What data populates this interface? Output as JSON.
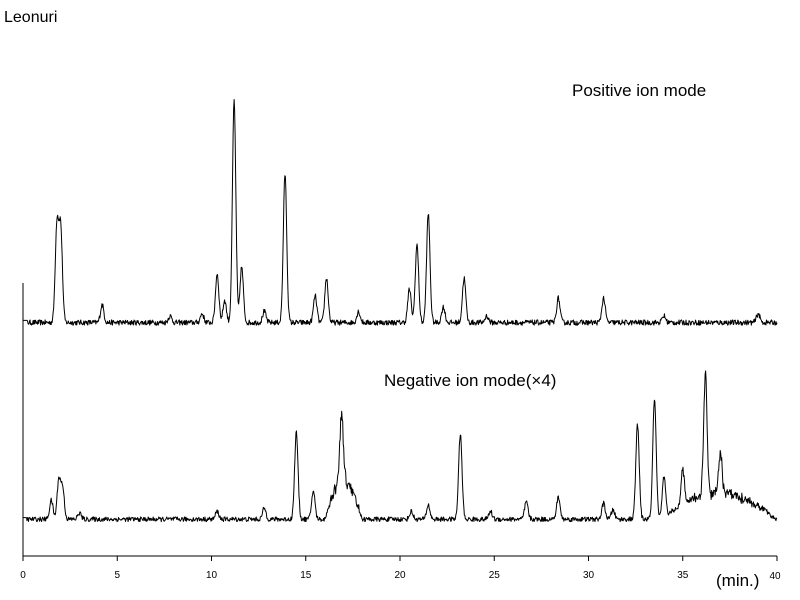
{
  "chart_data": {
    "type": "line",
    "title": "Leonuri",
    "xlabel": "(min.)",
    "ylabel": "",
    "xlim": [
      0,
      40
    ],
    "ylim": [
      0,
      1
    ],
    "x_ticks": [
      "0",
      "5",
      "10",
      "15",
      "20",
      "25",
      "30",
      "35",
      "40"
    ],
    "y_ticks": [],
    "grid": false,
    "legend": "none",
    "series": [
      {
        "name": "Positive ion mode",
        "baseline": 0.02,
        "noise": 0.012,
        "peaks": [
          {
            "t": 1.8,
            "h": 0.44
          },
          {
            "t": 2.0,
            "h": 0.42
          },
          {
            "t": 4.2,
            "h": 0.08
          },
          {
            "t": 7.8,
            "h": 0.03
          },
          {
            "t": 9.5,
            "h": 0.04
          },
          {
            "t": 10.3,
            "h": 0.22
          },
          {
            "t": 10.7,
            "h": 0.1
          },
          {
            "t": 11.2,
            "h": 1.0
          },
          {
            "t": 11.6,
            "h": 0.25
          },
          {
            "t": 12.8,
            "h": 0.05
          },
          {
            "t": 13.9,
            "h": 0.67
          },
          {
            "t": 15.5,
            "h": 0.12
          },
          {
            "t": 16.1,
            "h": 0.2
          },
          {
            "t": 17.8,
            "h": 0.05
          },
          {
            "t": 20.5,
            "h": 0.15
          },
          {
            "t": 20.9,
            "h": 0.35
          },
          {
            "t": 21.5,
            "h": 0.49
          },
          {
            "t": 22.3,
            "h": 0.07
          },
          {
            "t": 23.4,
            "h": 0.2
          },
          {
            "t": 24.6,
            "h": 0.03
          },
          {
            "t": 28.4,
            "h": 0.11
          },
          {
            "t": 30.8,
            "h": 0.11
          },
          {
            "t": 34.0,
            "h": 0.03
          },
          {
            "t": 39.0,
            "h": 0.04
          }
        ]
      },
      {
        "name": "Negative ion mode(×4)",
        "baseline": 0.03,
        "noise": 0.015,
        "peaks": [
          {
            "t": 1.5,
            "h": 0.12
          },
          {
            "t": 1.9,
            "h": 0.25
          },
          {
            "t": 2.1,
            "h": 0.2
          },
          {
            "t": 3.0,
            "h": 0.04
          },
          {
            "t": 10.3,
            "h": 0.05
          },
          {
            "t": 12.8,
            "h": 0.07
          },
          {
            "t": 14.5,
            "h": 0.55
          },
          {
            "t": 15.4,
            "h": 0.18
          },
          {
            "t": 16.9,
            "h": 0.42
          },
          {
            "t": 20.6,
            "h": 0.05
          },
          {
            "t": 21.5,
            "h": 0.09
          },
          {
            "t": 23.2,
            "h": 0.54
          },
          {
            "t": 24.8,
            "h": 0.05
          },
          {
            "t": 26.7,
            "h": 0.11
          },
          {
            "t": 28.4,
            "h": 0.14
          },
          {
            "t": 30.8,
            "h": 0.1
          },
          {
            "t": 31.3,
            "h": 0.06
          },
          {
            "t": 32.6,
            "h": 0.6
          },
          {
            "t": 33.5,
            "h": 0.76
          },
          {
            "t": 34.0,
            "h": 0.25
          },
          {
            "t": 35.0,
            "h": 0.22
          },
          {
            "t": 36.2,
            "h": 0.76
          },
          {
            "t": 37.0,
            "h": 0.24
          }
        ],
        "humps": [
          {
            "from": 16.0,
            "to": 18.0,
            "h": 0.26
          },
          {
            "from": 33.8,
            "to": 40.0,
            "h": 0.18
          }
        ]
      }
    ]
  }
}
